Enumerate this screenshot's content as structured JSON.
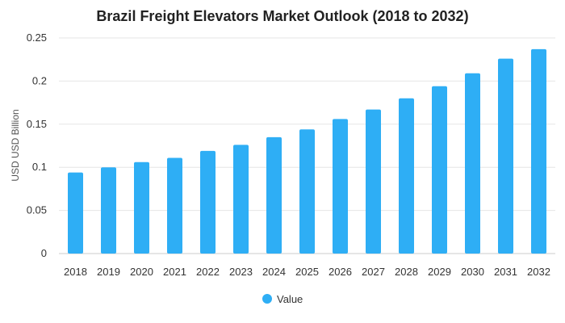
{
  "chart_data": {
    "type": "bar",
    "title": "Brazil Freight Elevators Market Outlook (2018 to 2032)",
    "xlabel": "",
    "ylabel": "USD USD Billion",
    "ylim": [
      0,
      0.25
    ],
    "yticks": [
      0,
      0.05,
      0.1,
      0.15,
      0.2,
      0.25
    ],
    "ytick_labels": [
      "0",
      "0.05",
      "0.1",
      "0.15",
      "0.2",
      "0.25"
    ],
    "grid": true,
    "legend_position": "bottom-center",
    "categories": [
      "2018",
      "2019",
      "2020",
      "2021",
      "2022",
      "2023",
      "2024",
      "2025",
      "2026",
      "2027",
      "2028",
      "2029",
      "2030",
      "2031",
      "2032"
    ],
    "series": [
      {
        "name": "Value",
        "color": "#2EAEF5",
        "values": [
          0.094,
          0.1,
          0.106,
          0.111,
          0.119,
          0.126,
          0.135,
          0.144,
          0.156,
          0.167,
          0.18,
          0.194,
          0.209,
          0.226,
          0.237
        ]
      }
    ]
  }
}
